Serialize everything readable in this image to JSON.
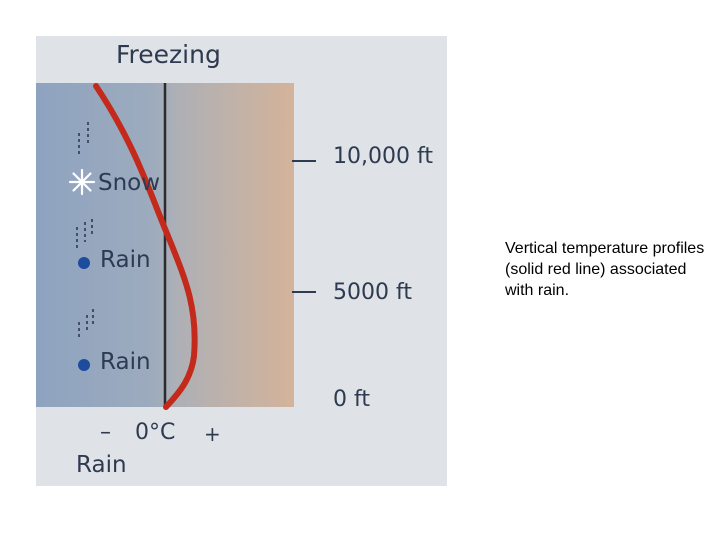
{
  "diagram": {
    "title": "Freezing",
    "precip_labels": {
      "snow": "Snow",
      "rain_mid": "Rain",
      "rain_low": "Rain"
    },
    "altitude_labels": {
      "high": "10,000 ft",
      "mid": "5000 ft",
      "ground": "0 ft"
    },
    "temperature_axis": {
      "minus": "–",
      "zero": "0°C",
      "plus": "+"
    },
    "panel_title": "Rain",
    "colors": {
      "cold": "#8ea3c0",
      "warm": "#d4b39a",
      "profile_line": "#c32a1b",
      "freezing_line": "#2b2b2b",
      "rain_drop": "#1d4b9e",
      "snowflake": "#ffffff"
    },
    "icons": [
      "snowflake-icon",
      "raindrop-icon",
      "falling-streaks-icon"
    ]
  },
  "caption": "Vertical temperature profiles (solid red line) associated with rain."
}
